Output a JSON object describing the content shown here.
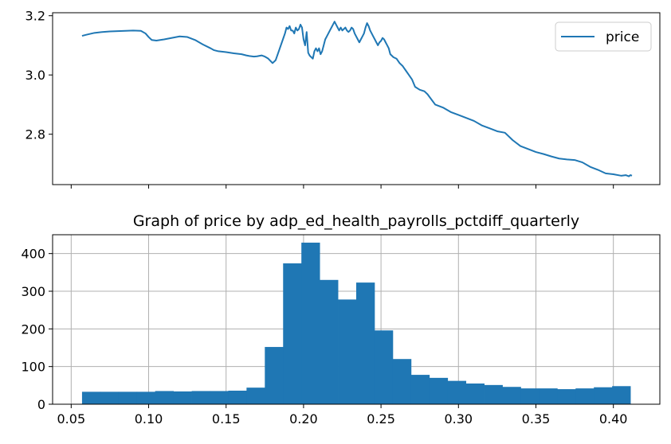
{
  "chart_data": [
    {
      "type": "line",
      "title": "",
      "xlabel": "",
      "ylabel": "",
      "xlim": [
        0.038,
        0.43
      ],
      "ylim": [
        2.63,
        3.21
      ],
      "yticks": [
        "2.8",
        "3.0",
        "3.2"
      ],
      "yticks_values": [
        2.8,
        3.0,
        3.2
      ],
      "xticks_values": [
        0.05,
        0.1,
        0.15,
        0.2,
        0.25,
        0.3,
        0.35,
        0.4
      ],
      "legend": {
        "position": "top-right",
        "entries": [
          "price"
        ]
      },
      "line_color": "#1f77b4",
      "grid": false,
      "series": [
        {
          "name": "price",
          "x": [
            0.057,
            0.06,
            0.065,
            0.07,
            0.075,
            0.08,
            0.085,
            0.09,
            0.095,
            0.098,
            0.1,
            0.102,
            0.105,
            0.11,
            0.115,
            0.12,
            0.125,
            0.13,
            0.135,
            0.14,
            0.142,
            0.145,
            0.15,
            0.155,
            0.16,
            0.163,
            0.165,
            0.168,
            0.17,
            0.173,
            0.175,
            0.177,
            0.18,
            0.182,
            0.184,
            0.186,
            0.188,
            0.189,
            0.19,
            0.191,
            0.192,
            0.193,
            0.194,
            0.195,
            0.196,
            0.197,
            0.198,
            0.199,
            0.2,
            0.201,
            0.202,
            0.203,
            0.204,
            0.205,
            0.206,
            0.207,
            0.208,
            0.209,
            0.21,
            0.211,
            0.212,
            0.213,
            0.214,
            0.215,
            0.216,
            0.217,
            0.218,
            0.219,
            0.22,
            0.221,
            0.222,
            0.223,
            0.224,
            0.225,
            0.226,
            0.227,
            0.228,
            0.229,
            0.23,
            0.231,
            0.232,
            0.233,
            0.234,
            0.235,
            0.236,
            0.237,
            0.238,
            0.239,
            0.24,
            0.241,
            0.242,
            0.243,
            0.244,
            0.245,
            0.246,
            0.247,
            0.248,
            0.249,
            0.25,
            0.251,
            0.252,
            0.253,
            0.254,
            0.255,
            0.256,
            0.258,
            0.26,
            0.262,
            0.264,
            0.266,
            0.268,
            0.27,
            0.272,
            0.275,
            0.278,
            0.28,
            0.285,
            0.29,
            0.295,
            0.3,
            0.305,
            0.31,
            0.315,
            0.32,
            0.325,
            0.33,
            0.335,
            0.34,
            0.345,
            0.35,
            0.355,
            0.36,
            0.365,
            0.37,
            0.375,
            0.38,
            0.385,
            0.39,
            0.395,
            0.4,
            0.405,
            0.408,
            0.41,
            0.411,
            0.412
          ],
          "y": [
            3.132,
            3.136,
            3.142,
            3.145,
            3.147,
            3.148,
            3.149,
            3.15,
            3.149,
            3.14,
            3.128,
            3.118,
            3.116,
            3.12,
            3.125,
            3.13,
            3.128,
            3.118,
            3.103,
            3.09,
            3.084,
            3.08,
            3.077,
            3.073,
            3.07,
            3.066,
            3.064,
            3.062,
            3.063,
            3.066,
            3.062,
            3.056,
            3.04,
            3.05,
            3.08,
            3.11,
            3.14,
            3.16,
            3.155,
            3.165,
            3.15,
            3.15,
            3.14,
            3.16,
            3.15,
            3.155,
            3.17,
            3.16,
            3.12,
            3.1,
            3.145,
            3.075,
            3.065,
            3.06,
            3.055,
            3.08,
            3.09,
            3.08,
            3.09,
            3.07,
            3.08,
            3.1,
            3.12,
            3.13,
            3.14,
            3.15,
            3.16,
            3.17,
            3.18,
            3.17,
            3.16,
            3.15,
            3.16,
            3.15,
            3.155,
            3.16,
            3.15,
            3.145,
            3.15,
            3.16,
            3.155,
            3.14,
            3.13,
            3.12,
            3.11,
            3.12,
            3.13,
            3.14,
            3.16,
            3.175,
            3.165,
            3.15,
            3.14,
            3.13,
            3.12,
            3.11,
            3.1,
            3.11,
            3.115,
            3.125,
            3.12,
            3.11,
            3.1,
            3.09,
            3.07,
            3.06,
            3.055,
            3.04,
            3.03,
            3.015,
            3.0,
            2.985,
            2.96,
            2.95,
            2.945,
            2.935,
            2.9,
            2.89,
            2.875,
            2.865,
            2.855,
            2.845,
            2.83,
            2.82,
            2.81,
            2.805,
            2.78,
            2.76,
            2.75,
            2.74,
            2.733,
            2.725,
            2.718,
            2.715,
            2.713,
            2.705,
            2.69,
            2.68,
            2.668,
            2.665,
            2.66,
            2.662,
            2.658,
            2.662,
            2.66
          ]
        }
      ]
    },
    {
      "type": "bar",
      "title": "Graph of price by adp_ed_health_payrolls_pctdiff_quarterly",
      "xlabel": "",
      "ylabel": "",
      "xlim": [
        0.038,
        0.43
      ],
      "ylim": [
        0,
        450
      ],
      "bar_color": "#1f77b4",
      "grid": true,
      "xticks": [
        "0.05",
        "0.10",
        "0.15",
        "0.20",
        "0.25",
        "0.30",
        "0.35",
        "0.40"
      ],
      "xticks_values": [
        0.05,
        0.1,
        0.15,
        0.2,
        0.25,
        0.3,
        0.35,
        0.4
      ],
      "yticks": [
        "0",
        "100",
        "200",
        "300",
        "400"
      ],
      "yticks_values": [
        0,
        100,
        200,
        300,
        400
      ],
      "bin_start": 0.057,
      "bin_width": 0.0118,
      "values": [
        33,
        33,
        33,
        33,
        35,
        34,
        35,
        35,
        36,
        44,
        152,
        374,
        429,
        330,
        278,
        323,
        196,
        120,
        78,
        70,
        62,
        55,
        51,
        46,
        42,
        42,
        40,
        42,
        45,
        48
      ]
    }
  ]
}
